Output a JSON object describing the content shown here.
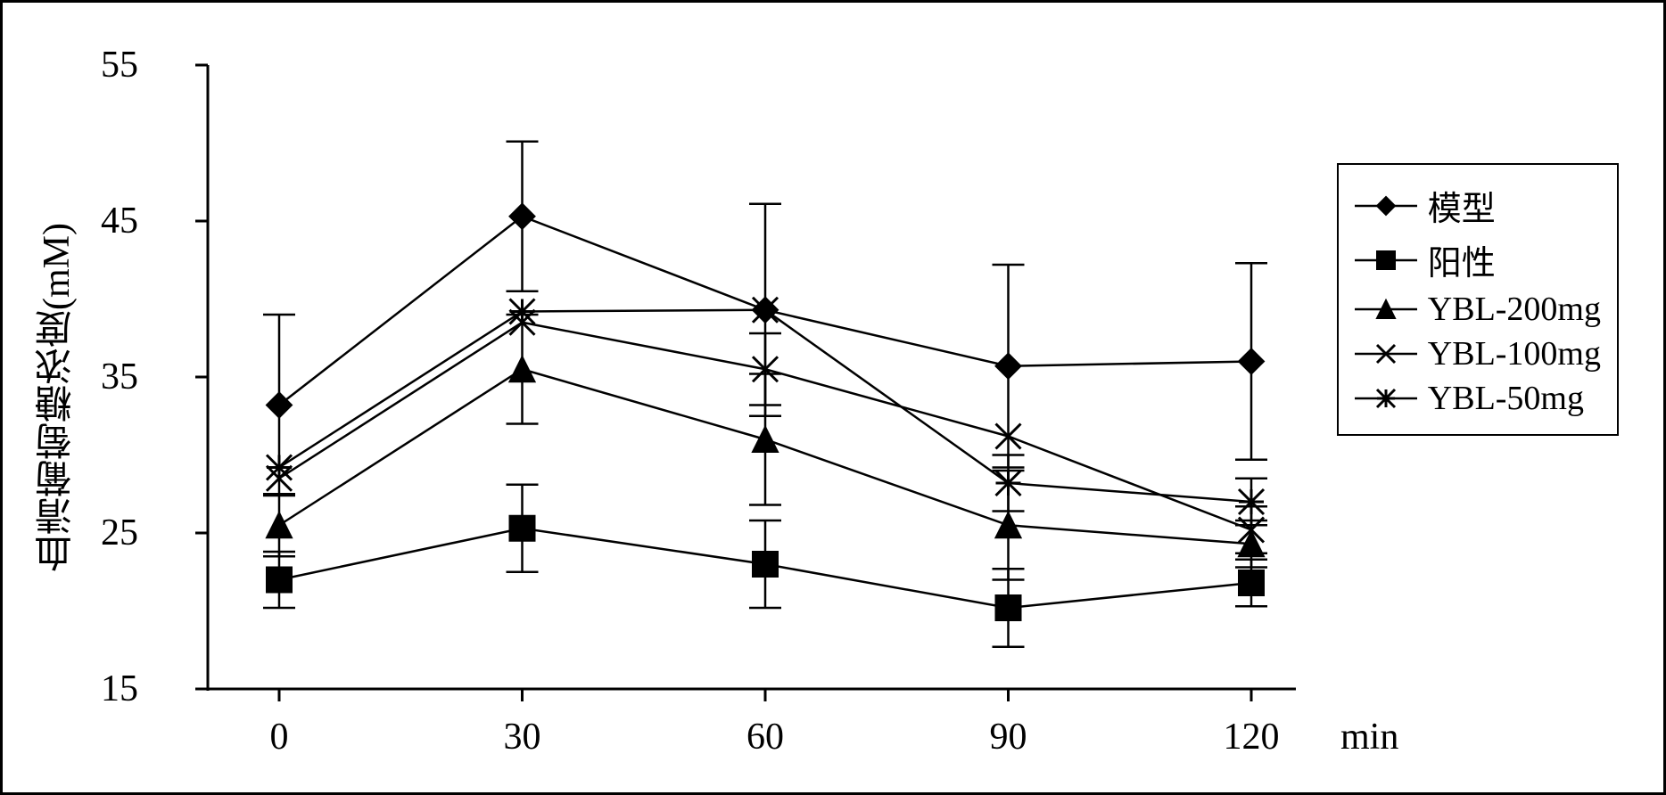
{
  "chart": {
    "type": "line",
    "background_color": "#ffffff",
    "border_color": "#000000",
    "axis_color": "#000000",
    "line_color": "#000000",
    "line_width": 2.5,
    "marker_size": 14,
    "error_cap_width": 18,
    "y_axis": {
      "label": "血清葡萄糖浓度(mM)",
      "min": 15,
      "max": 55,
      "ticks": [
        15,
        25,
        35,
        45,
        55
      ],
      "tick_labels": [
        "15",
        "25",
        "35",
        "45",
        "55"
      ],
      "label_fontsize": 42,
      "tick_fontsize": 42
    },
    "x_axis": {
      "unit_label": "min",
      "categories": [
        0,
        30,
        60,
        90,
        120
      ],
      "category_labels": [
        "0",
        "30",
        "60",
        "90",
        "120"
      ],
      "tick_fontsize": 42
    },
    "series": [
      {
        "name": "模型",
        "marker": "diamond",
        "fill": "#000000",
        "values": [
          33.2,
          45.3,
          39.3,
          35.7,
          36.0
        ],
        "errors": [
          5.8,
          4.8,
          6.8,
          6.5,
          6.3
        ]
      },
      {
        "name": "阳性",
        "marker": "square",
        "fill": "#000000",
        "values": [
          22.0,
          25.3,
          23.0,
          20.2,
          21.8
        ],
        "errors": [
          1.8,
          2.8,
          2.8,
          2.5,
          1.5
        ]
      },
      {
        "name": "YBL-200mg",
        "marker": "triangle",
        "fill": "#000000",
        "values": [
          25.5,
          35.5,
          31.0,
          25.5,
          24.3
        ],
        "errors": [
          2.0,
          3.5,
          4.2,
          3.5,
          1.5
        ]
      },
      {
        "name": "YBL-100mg",
        "marker": "x",
        "fill": "none",
        "values": [
          28.5,
          38.5,
          35.5,
          31.2,
          25.2
        ],
        "errors": [
          0,
          0,
          2.3,
          0,
          1.5
        ]
      },
      {
        "name": "YBL-50mg",
        "marker": "asterisk",
        "fill": "none",
        "values": [
          29.2,
          39.2,
          39.3,
          28.2,
          27.0
        ],
        "errors": [
          0,
          0,
          0,
          1.8,
          1.5
        ]
      }
    ],
    "legend": {
      "position": "right",
      "border_color": "#000000",
      "fontsize": 38
    }
  }
}
